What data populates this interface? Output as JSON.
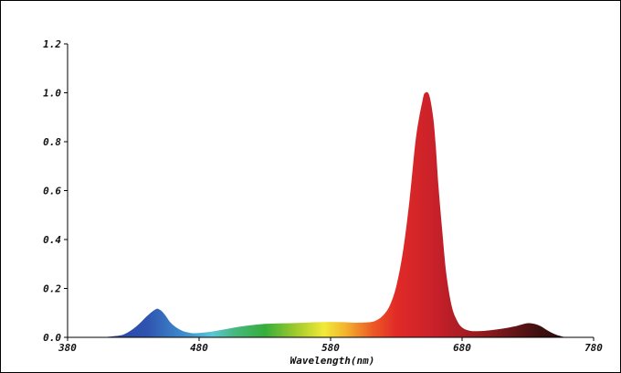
{
  "chart_data": {
    "type": "area",
    "title": "",
    "xlabel": "Wavelength(nm)",
    "ylabel": "",
    "xlim": [
      380,
      780
    ],
    "ylim": [
      0,
      1.2
    ],
    "x_ticks": [
      380,
      480,
      580,
      680,
      780
    ],
    "x_tick_labels": [
      "380",
      "480",
      "580",
      "680",
      "780"
    ],
    "y_ticks": [
      0.0,
      0.2,
      0.4,
      0.6,
      0.8,
      1.0,
      1.2
    ],
    "y_tick_labels": [
      "0.0",
      "0.2",
      "0.4",
      "0.6",
      "0.8",
      "1.0",
      "1.2"
    ],
    "grid": false,
    "fill": "visible-spectrum color gradient",
    "series": [
      {
        "x": [
          380,
          400,
          410,
          420,
          425,
          430,
          435,
          440,
          445,
          448,
          450,
          452,
          455,
          458,
          462,
          466,
          470,
          475,
          480,
          490,
          500,
          510,
          520,
          530,
          540,
          550,
          560,
          570,
          580,
          590,
          600,
          610,
          615,
          620,
          625,
          630,
          635,
          640,
          645,
          650,
          652,
          655,
          658,
          660,
          662,
          665,
          668,
          672,
          676,
          680,
          685,
          690,
          700,
          710,
          720,
          725,
          730,
          735,
          740,
          745,
          750,
          755,
          760,
          780
        ],
        "values": [
          0,
          0,
          0.002,
          0.008,
          0.018,
          0.035,
          0.058,
          0.085,
          0.108,
          0.117,
          0.113,
          0.105,
          0.085,
          0.062,
          0.043,
          0.03,
          0.022,
          0.017,
          0.018,
          0.024,
          0.033,
          0.043,
          0.05,
          0.055,
          0.057,
          0.058,
          0.06,
          0.062,
          0.063,
          0.062,
          0.06,
          0.062,
          0.07,
          0.09,
          0.13,
          0.21,
          0.35,
          0.56,
          0.82,
          0.97,
          1.0,
          0.99,
          0.9,
          0.78,
          0.62,
          0.43,
          0.26,
          0.13,
          0.07,
          0.04,
          0.028,
          0.025,
          0.028,
          0.035,
          0.045,
          0.052,
          0.058,
          0.055,
          0.045,
          0.028,
          0.014,
          0.005,
          0.001,
          0
        ]
      }
    ],
    "colors": {
      "axis": "#000000",
      "gradient_stops": [
        {
          "nm": 380,
          "color": "#2a3c9a"
        },
        {
          "nm": 440,
          "color": "#2f53b0"
        },
        {
          "nm": 470,
          "color": "#3f8fce"
        },
        {
          "nm": 490,
          "color": "#5cc6d8"
        },
        {
          "nm": 505,
          "color": "#49b986"
        },
        {
          "nm": 530,
          "color": "#36ad3a"
        },
        {
          "nm": 555,
          "color": "#a6cc2c"
        },
        {
          "nm": 575,
          "color": "#f2ea3a"
        },
        {
          "nm": 592,
          "color": "#f3b12e"
        },
        {
          "nm": 612,
          "color": "#ec5a25"
        },
        {
          "nm": 630,
          "color": "#e12a27"
        },
        {
          "nm": 660,
          "color": "#c8202a"
        },
        {
          "nm": 700,
          "color": "#8a1a1e"
        },
        {
          "nm": 740,
          "color": "#3c1010"
        },
        {
          "nm": 780,
          "color": "#1a0808"
        }
      ]
    }
  }
}
